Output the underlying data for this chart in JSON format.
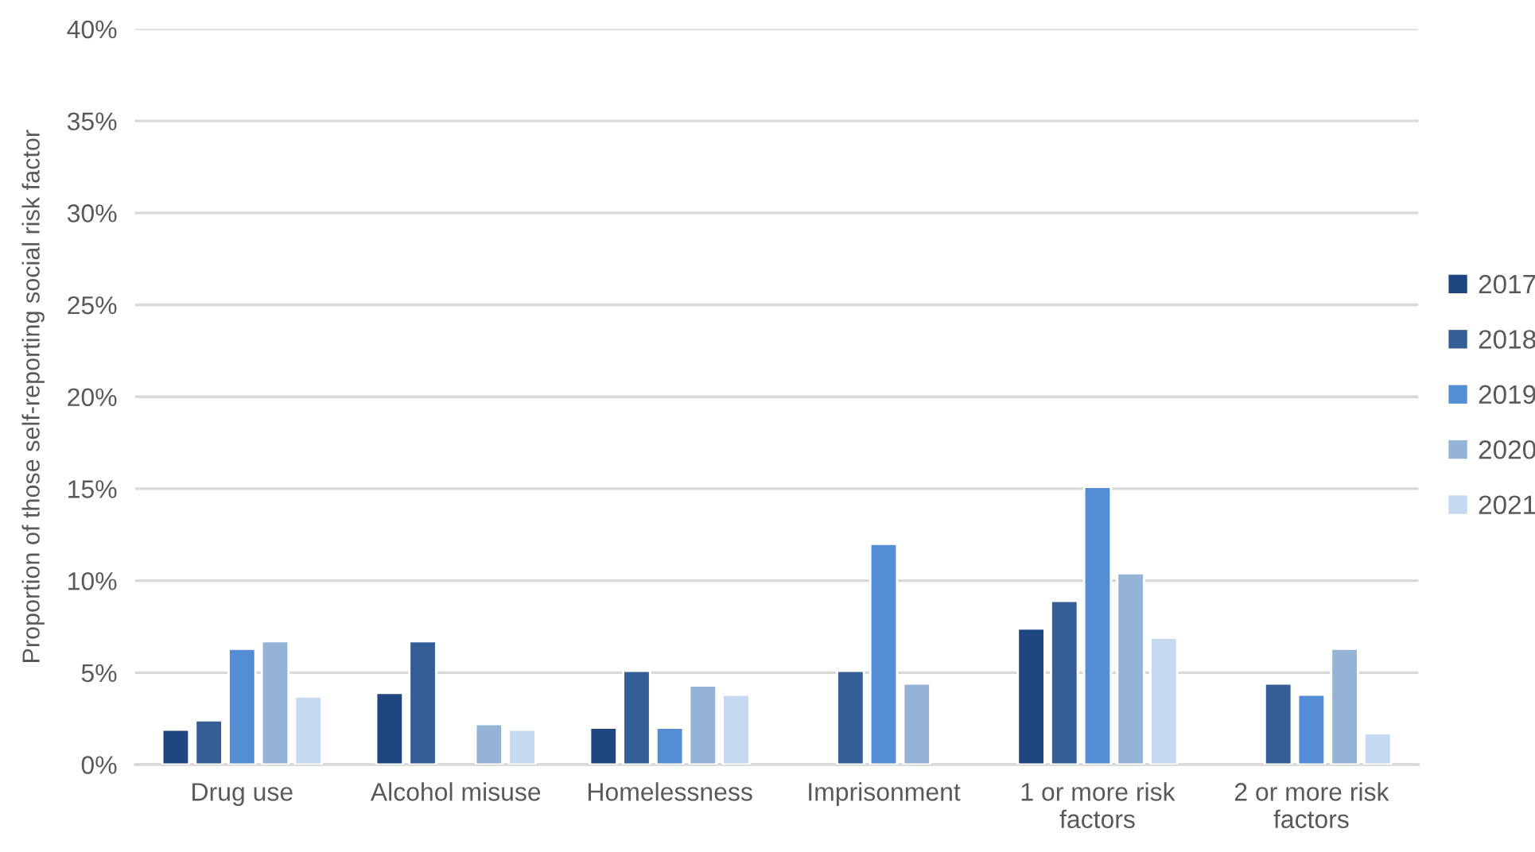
{
  "chart_data": {
    "type": "bar",
    "ylabel": "Proportion of those self-reporting social risk factor",
    "categories": [
      "Drug use",
      "Alcohol misuse",
      "Homelessness",
      "Imprisonment",
      "1 or more risk\nfactors",
      "2 or more risk\nfactors"
    ],
    "series": [
      {
        "name": "2017",
        "color": "#1f4680",
        "values": [
          1.9,
          3.9,
          2.0,
          null,
          7.4,
          null
        ]
      },
      {
        "name": "2018",
        "color": "#355e96",
        "values": [
          2.4,
          6.7,
          5.1,
          5.1,
          8.9,
          4.4
        ]
      },
      {
        "name": "2019",
        "color": "#548dd4",
        "values": [
          6.3,
          null,
          2.0,
          12.0,
          15.1,
          3.8
        ]
      },
      {
        "name": "2020",
        "color": "#95b3d7",
        "values": [
          6.7,
          2.2,
          4.3,
          4.4,
          10.4,
          6.3
        ]
      },
      {
        "name": "2021",
        "color": "#c5d9f1",
        "values": [
          3.7,
          1.9,
          3.8,
          null,
          6.9,
          1.7
        ]
      }
    ],
    "ylim": [
      0,
      40
    ],
    "yticks": [
      {
        "value": 0,
        "label": "0%"
      },
      {
        "value": 5,
        "label": "5%"
      },
      {
        "value": 10,
        "label": "10%"
      },
      {
        "value": 15,
        "label": "15%"
      },
      {
        "value": 20,
        "label": "20%"
      },
      {
        "value": 25,
        "label": "25%"
      },
      {
        "value": 30,
        "label": "30%"
      },
      {
        "value": 35,
        "label": "35%"
      },
      {
        "value": 40,
        "label": "40%"
      }
    ],
    "grid": "y",
    "legend": "right"
  }
}
